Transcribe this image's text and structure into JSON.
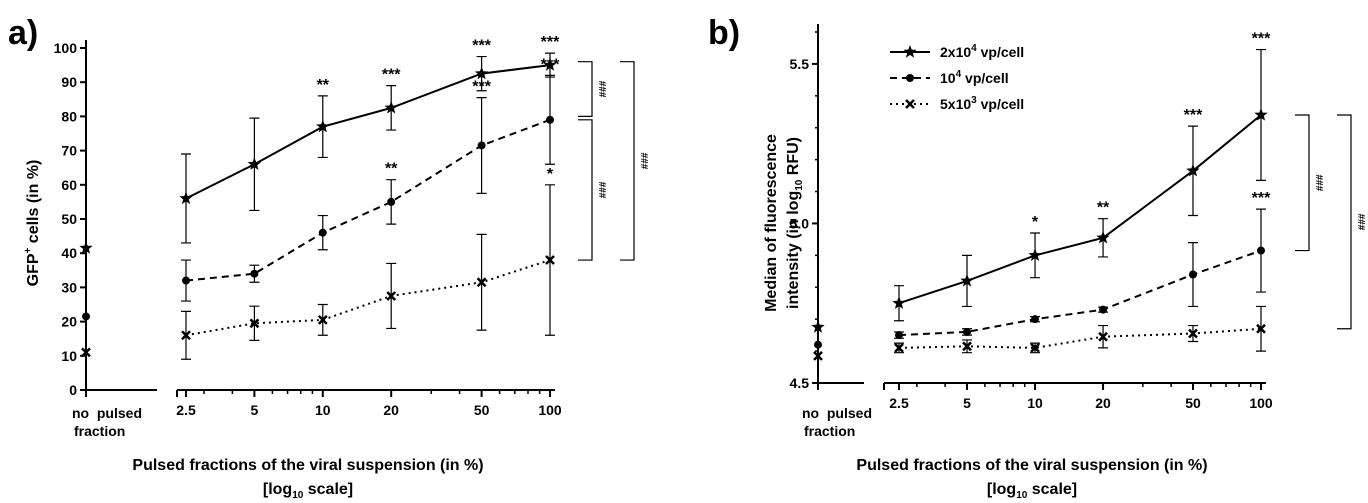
{
  "chart_data": [
    {
      "panel": "a)",
      "type": "line",
      "ylabel_prefix": "GFP",
      "ylabel_sup": "+",
      "ylabel_suffix": " cells (in %)",
      "xlabel": "Pulsed fractions of the viral suspension (in %)",
      "xlabel2_pre": "[log",
      "xlabel2_sub": "10",
      "xlabel2_post": " scale]",
      "no_pulse_label1": "no  pulsed",
      "no_pulse_label2": "fraction",
      "x_scale": "log",
      "x": [
        2.5,
        5,
        10,
        20,
        50,
        100
      ],
      "x_tick_labels": [
        "2.5",
        "5",
        "10",
        "20",
        "50",
        "100"
      ],
      "ylim": [
        0,
        100
      ],
      "y_ticks": [
        0,
        10,
        20,
        30,
        40,
        50,
        60,
        70,
        80,
        90,
        100
      ],
      "series": [
        {
          "key": "s1",
          "values": [
            56,
            66,
            77,
            82.5,
            92.5,
            95
          ],
          "errors": [
            13,
            13.5,
            9,
            6.5,
            5,
            3.5
          ],
          "no_pulse": 41.5,
          "no_pulse_error": 13.5,
          "marker": "star",
          "dash": "solid",
          "significance": [
            "",
            "",
            "**",
            "***",
            "***",
            "***"
          ]
        },
        {
          "key": "s2",
          "values": [
            32,
            34,
            46,
            55,
            71.5,
            79
          ],
          "errors": [
            6,
            2.5,
            5,
            6.5,
            14,
            13
          ],
          "no_pulse": 21.5,
          "no_pulse_error": 8,
          "marker": "circle",
          "dash": "dashed",
          "significance": [
            "",
            "",
            "",
            "**",
            "***",
            "***"
          ]
        },
        {
          "key": "s3",
          "values": [
            16,
            19.5,
            20.5,
            27.5,
            31.5,
            38
          ],
          "errors": [
            7,
            5,
            4.5,
            9.5,
            14,
            22
          ],
          "no_pulse": 11,
          "no_pulse_error": 6,
          "marker": "x",
          "dash": "dotted",
          "significance": [
            "",
            "",
            "",
            "",
            "",
            "*"
          ]
        }
      ],
      "brackets": [
        {
          "label": "###",
          "y_top": 96,
          "y_bottom": 80,
          "x_offset": 42
        },
        {
          "label": "###",
          "y_top": 79,
          "y_bottom": 38,
          "x_offset": 42
        },
        {
          "label": "###",
          "y_top": 96,
          "y_bottom": 38,
          "x_offset": 84
        }
      ]
    },
    {
      "panel": "b)",
      "type": "line",
      "ylabel1": "Median of fluorescence",
      "ylabel2_pre": "intensity (in log",
      "ylabel2_sub": "10",
      "ylabel2_post": " RFU)",
      "xlabel": "Pulsed fractions of the viral suspension (in %)",
      "xlabel2_pre": "[log",
      "xlabel2_sub": "10",
      "xlabel2_post": " scale]",
      "no_pulse_label1": "no  pulsed",
      "no_pulse_label2": "fraction",
      "x_scale": "log",
      "x": [
        2.5,
        5,
        10,
        20,
        50,
        100
      ],
      "x_tick_labels": [
        "2.5",
        "5",
        "10",
        "20",
        "50",
        "100"
      ],
      "ylim": [
        4.5,
        5.6
      ],
      "y_ticks": [
        4.5,
        5.0,
        5.5
      ],
      "y_tick_labels": [
        "4.5",
        "5.0",
        "5.5"
      ],
      "legend_position": "top-left",
      "legend": [
        {
          "key": "s1",
          "pre": "2x10",
          "sup": "4",
          "post": " vp/cell"
        },
        {
          "key": "s2",
          "pre": "10",
          "sup": "4",
          "post": " vp/cell"
        },
        {
          "key": "s3",
          "pre": "5x10",
          "sup": "3",
          "post": " vp/cell"
        }
      ],
      "series": [
        {
          "key": "s1",
          "values": [
            4.75,
            4.82,
            4.9,
            4.955,
            5.165,
            5.34
          ],
          "errors": [
            0.055,
            0.08,
            0.07,
            0.06,
            0.14,
            0.205
          ],
          "no_pulse": 4.675,
          "no_pulse_error": 0.02,
          "marker": "star",
          "dash": "solid",
          "significance": [
            "",
            "",
            "*",
            "**",
            "***",
            "***"
          ]
        },
        {
          "key": "s2",
          "values": [
            4.65,
            4.66,
            4.7,
            4.73,
            4.84,
            4.915
          ],
          "errors": [
            0.01,
            0.01,
            0.008,
            0.008,
            0.1,
            0.13
          ],
          "no_pulse": 4.62,
          "no_pulse_error": 0.01,
          "marker": "circle",
          "dash": "dashed",
          "significance": [
            "",
            "",
            "",
            "",
            "",
            "***"
          ]
        },
        {
          "key": "s3",
          "values": [
            4.61,
            4.615,
            4.61,
            4.645,
            4.655,
            4.67
          ],
          "errors": [
            0.015,
            0.02,
            0.015,
            0.035,
            0.025,
            0.07
          ],
          "no_pulse": 4.585,
          "no_pulse_error": 0.01,
          "marker": "x",
          "dash": "dotted",
          "significance": [
            "",
            "",
            "",
            "",
            "",
            ""
          ]
        }
      ],
      "brackets": [
        {
          "label": "###",
          "y_top": 5.34,
          "y_bottom": 4.915,
          "x_offset": 48
        },
        {
          "label": "###",
          "y_top": 5.34,
          "y_bottom": 4.67,
          "x_offset": 90
        }
      ]
    }
  ]
}
